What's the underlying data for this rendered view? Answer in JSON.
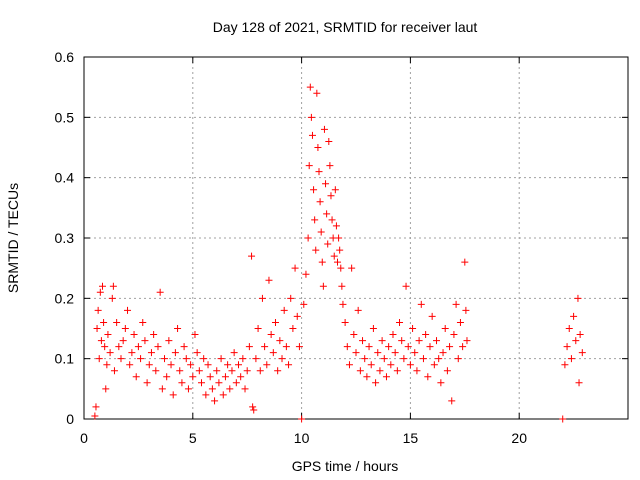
{
  "chart_data": {
    "type": "scatter",
    "title": "Day 128 of 2021, SRMTID for receiver laut",
    "xlabel": "GPS time / hours",
    "ylabel": "SRMTID / TECUs",
    "xlim": [
      0,
      25
    ],
    "ylim": [
      0,
      0.6
    ],
    "x_ticks": [
      0,
      5,
      10,
      15,
      20
    ],
    "x_tick_labels": [
      "0",
      "5",
      "10",
      "15",
      "20"
    ],
    "y_ticks": [
      0,
      0.1,
      0.2,
      0.3,
      0.4,
      0.5,
      0.6
    ],
    "y_tick_labels": [
      "0",
      "0.1",
      "0.2",
      "0.3",
      "0.4",
      "0.5",
      "0.6"
    ],
    "grid": true,
    "marker": "+",
    "color": "#ff0000",
    "series": [
      {
        "name": "SRMTID",
        "points": [
          [
            0.5,
            0.005
          ],
          [
            0.55,
            0.02
          ],
          [
            0.6,
            0.15
          ],
          [
            0.65,
            0.18
          ],
          [
            0.7,
            0.1
          ],
          [
            0.75,
            0.21
          ],
          [
            0.8,
            0.13
          ],
          [
            0.85,
            0.22
          ],
          [
            0.9,
            0.16
          ],
          [
            0.95,
            0.12
          ],
          [
            1.0,
            0.05
          ],
          [
            1.05,
            0.09
          ],
          [
            1.1,
            0.14
          ],
          [
            1.2,
            0.11
          ],
          [
            1.3,
            0.2
          ],
          [
            1.35,
            0.22
          ],
          [
            1.4,
            0.08
          ],
          [
            1.5,
            0.16
          ],
          [
            1.6,
            0.12
          ],
          [
            1.7,
            0.1
          ],
          [
            1.8,
            0.13
          ],
          [
            1.9,
            0.15
          ],
          [
            2.0,
            0.18
          ],
          [
            2.1,
            0.09
          ],
          [
            2.2,
            0.11
          ],
          [
            2.3,
            0.14
          ],
          [
            2.4,
            0.07
          ],
          [
            2.5,
            0.12
          ],
          [
            2.6,
            0.1
          ],
          [
            2.7,
            0.16
          ],
          [
            2.8,
            0.13
          ],
          [
            2.9,
            0.06
          ],
          [
            3.0,
            0.09
          ],
          [
            3.1,
            0.11
          ],
          [
            3.2,
            0.14
          ],
          [
            3.3,
            0.08
          ],
          [
            3.4,
            0.12
          ],
          [
            3.5,
            0.21
          ],
          [
            3.6,
            0.05
          ],
          [
            3.7,
            0.1
          ],
          [
            3.8,
            0.07
          ],
          [
            3.9,
            0.13
          ],
          [
            4.0,
            0.09
          ],
          [
            4.1,
            0.04
          ],
          [
            4.2,
            0.11
          ],
          [
            4.3,
            0.15
          ],
          [
            4.4,
            0.08
          ],
          [
            4.5,
            0.06
          ],
          [
            4.6,
            0.12
          ],
          [
            4.7,
            0.1
          ],
          [
            4.8,
            0.05
          ],
          [
            4.9,
            0.09
          ],
          [
            5.0,
            0.07
          ],
          [
            5.1,
            0.14
          ],
          [
            5.2,
            0.11
          ],
          [
            5.3,
            0.08
          ],
          [
            5.4,
            0.06
          ],
          [
            5.5,
            0.1
          ],
          [
            5.6,
            0.04
          ],
          [
            5.7,
            0.09
          ],
          [
            5.8,
            0.07
          ],
          [
            5.9,
            0.05
          ],
          [
            6.0,
            0.03
          ],
          [
            6.1,
            0.08
          ],
          [
            6.2,
            0.06
          ],
          [
            6.3,
            0.1
          ],
          [
            6.4,
            0.04
          ],
          [
            6.5,
            0.07
          ],
          [
            6.6,
            0.09
          ],
          [
            6.7,
            0.05
          ],
          [
            6.8,
            0.08
          ],
          [
            6.9,
            0.11
          ],
          [
            7.0,
            0.06
          ],
          [
            7.1,
            0.09
          ],
          [
            7.2,
            0.07
          ],
          [
            7.3,
            0.1
          ],
          [
            7.4,
            0.05
          ],
          [
            7.5,
            0.08
          ],
          [
            7.6,
            0.12
          ],
          [
            7.7,
            0.27
          ],
          [
            7.75,
            0.02
          ],
          [
            7.8,
            0.015
          ],
          [
            7.9,
            0.1
          ],
          [
            8.0,
            0.15
          ],
          [
            8.1,
            0.08
          ],
          [
            8.2,
            0.2
          ],
          [
            8.3,
            0.12
          ],
          [
            8.4,
            0.09
          ],
          [
            8.5,
            0.23
          ],
          [
            8.6,
            0.14
          ],
          [
            8.7,
            0.11
          ],
          [
            8.8,
            0.16
          ],
          [
            8.9,
            0.08
          ],
          [
            9.0,
            0.13
          ],
          [
            9.1,
            0.1
          ],
          [
            9.2,
            0.18
          ],
          [
            9.3,
            0.12
          ],
          [
            9.4,
            0.09
          ],
          [
            9.5,
            0.2
          ],
          [
            9.6,
            0.15
          ],
          [
            9.7,
            0.25
          ],
          [
            9.8,
            0.17
          ],
          [
            9.9,
            0.12
          ],
          [
            10.0,
            0.0
          ],
          [
            10.1,
            0.19
          ],
          [
            10.2,
            0.24
          ],
          [
            10.3,
            0.3
          ],
          [
            10.35,
            0.42
          ],
          [
            10.4,
            0.55
          ],
          [
            10.45,
            0.5
          ],
          [
            10.5,
            0.47
          ],
          [
            10.55,
            0.38
          ],
          [
            10.6,
            0.33
          ],
          [
            10.65,
            0.28
          ],
          [
            10.7,
            0.54
          ],
          [
            10.75,
            0.45
          ],
          [
            10.8,
            0.41
          ],
          [
            10.85,
            0.36
          ],
          [
            10.9,
            0.31
          ],
          [
            10.95,
            0.26
          ],
          [
            11.0,
            0.22
          ],
          [
            11.05,
            0.48
          ],
          [
            11.1,
            0.39
          ],
          [
            11.15,
            0.34
          ],
          [
            11.2,
            0.29
          ],
          [
            11.25,
            0.46
          ],
          [
            11.3,
            0.42
          ],
          [
            11.35,
            0.37
          ],
          [
            11.4,
            0.33
          ],
          [
            11.45,
            0.3
          ],
          [
            11.5,
            0.27
          ],
          [
            11.55,
            0.38
          ],
          [
            11.6,
            0.32
          ],
          [
            11.65,
            0.26
          ],
          [
            11.7,
            0.3
          ],
          [
            11.75,
            0.28
          ],
          [
            11.8,
            0.25
          ],
          [
            11.85,
            0.22
          ],
          [
            11.9,
            0.19
          ],
          [
            12.0,
            0.16
          ],
          [
            12.1,
            0.12
          ],
          [
            12.2,
            0.09
          ],
          [
            12.3,
            0.25
          ],
          [
            12.4,
            0.14
          ],
          [
            12.5,
            0.11
          ],
          [
            12.6,
            0.18
          ],
          [
            12.7,
            0.08
          ],
          [
            12.8,
            0.13
          ],
          [
            12.9,
            0.1
          ],
          [
            13.0,
            0.07
          ],
          [
            13.1,
            0.12
          ],
          [
            13.2,
            0.09
          ],
          [
            13.3,
            0.15
          ],
          [
            13.4,
            0.06
          ],
          [
            13.5,
            0.11
          ],
          [
            13.6,
            0.08
          ],
          [
            13.7,
            0.13
          ],
          [
            13.8,
            0.1
          ],
          [
            13.9,
            0.07
          ],
          [
            14.0,
            0.12
          ],
          [
            14.1,
            0.09
          ],
          [
            14.2,
            0.14
          ],
          [
            14.3,
            0.11
          ],
          [
            14.4,
            0.08
          ],
          [
            14.5,
            0.16
          ],
          [
            14.6,
            0.13
          ],
          [
            14.7,
            0.1
          ],
          [
            14.8,
            0.22
          ],
          [
            14.9,
            0.12
          ],
          [
            15.0,
            0.09
          ],
          [
            15.1,
            0.15
          ],
          [
            15.2,
            0.11
          ],
          [
            15.3,
            0.08
          ],
          [
            15.4,
            0.13
          ],
          [
            15.5,
            0.19
          ],
          [
            15.6,
            0.1
          ],
          [
            15.7,
            0.14
          ],
          [
            15.8,
            0.07
          ],
          [
            15.9,
            0.12
          ],
          [
            16.0,
            0.17
          ],
          [
            16.1,
            0.09
          ],
          [
            16.2,
            0.13
          ],
          [
            16.3,
            0.1
          ],
          [
            16.4,
            0.06
          ],
          [
            16.5,
            0.11
          ],
          [
            16.6,
            0.15
          ],
          [
            16.7,
            0.08
          ],
          [
            16.8,
            0.12
          ],
          [
            16.9,
            0.03
          ],
          [
            17.0,
            0.14
          ],
          [
            17.1,
            0.19
          ],
          [
            17.2,
            0.1
          ],
          [
            17.3,
            0.16
          ],
          [
            17.4,
            0.12
          ],
          [
            17.5,
            0.26
          ],
          [
            17.55,
            0.18
          ],
          [
            17.6,
            0.13
          ],
          [
            22.0,
            0.0
          ],
          [
            22.1,
            0.09
          ],
          [
            22.2,
            0.12
          ],
          [
            22.3,
            0.15
          ],
          [
            22.4,
            0.1
          ],
          [
            22.5,
            0.17
          ],
          [
            22.6,
            0.13
          ],
          [
            22.7,
            0.2
          ],
          [
            22.75,
            0.06
          ],
          [
            22.8,
            0.14
          ],
          [
            22.9,
            0.11
          ]
        ]
      }
    ]
  }
}
